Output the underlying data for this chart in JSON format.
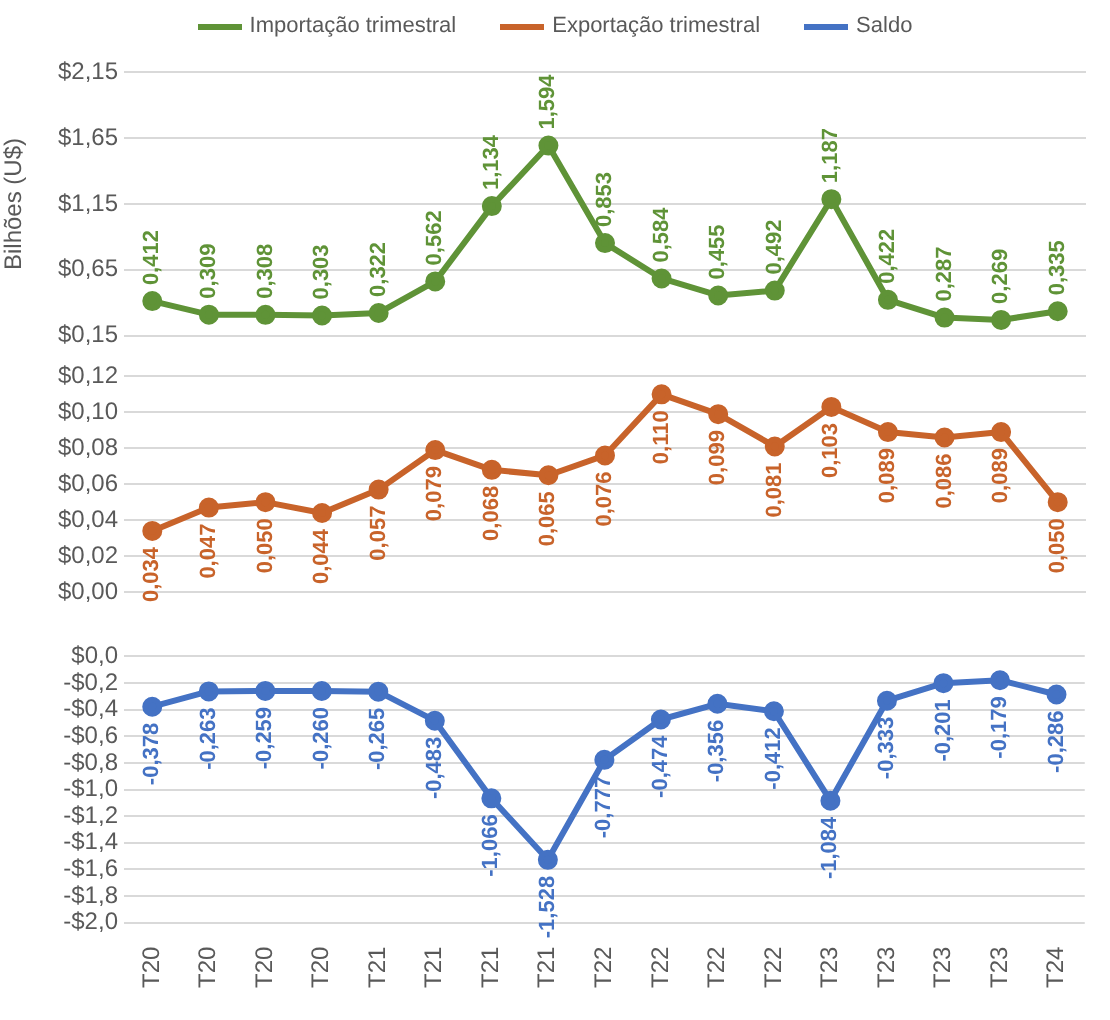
{
  "chart_data": [
    {
      "type": "line",
      "ylabel": "Bilhões (U$)",
      "legend": "top",
      "grid": "y",
      "marker": "circle",
      "line_style": "solid",
      "tick_labels": "y",
      "categories": [
        null,
        null,
        null,
        null,
        null,
        null,
        null,
        null,
        null,
        null,
        null,
        null,
        null,
        null,
        null,
        null,
        null
      ],
      "series": [
        {
          "name": "Importação trimestral",
          "color": "#5f9337",
          "values": [
            0.412,
            0.309,
            0.308,
            0.303,
            0.322,
            0.562,
            1.134,
            1.594,
            0.853,
            0.584,
            0.455,
            0.492,
            1.187,
            0.422,
            0.287,
            0.269,
            0.335
          ],
          "value_labels": [
            "0,412",
            "0,309",
            "0,308",
            "0,303",
            "0,322",
            "0,562",
            "1,134",
            "1,594",
            "0,853",
            "0,584",
            "0,455",
            "0,492",
            "1,187",
            "0,422",
            "0,287",
            "0,269",
            "0,335"
          ]
        }
      ],
      "ylim": [
        0.15,
        2.15
      ],
      "yticks": [
        {
          "value": 0.15,
          "label": "$0,15"
        },
        {
          "value": 0.65,
          "label": "$0,65"
        },
        {
          "value": 1.15,
          "label": "$1,15"
        },
        {
          "value": 1.65,
          "label": "$1,65"
        },
        {
          "value": 2.15,
          "label": "$2,15"
        }
      ]
    },
    {
      "type": "line",
      "legend": "top",
      "grid": "y",
      "marker": "circle",
      "line_style": "solid",
      "tick_labels": "y",
      "categories": [
        null,
        null,
        null,
        null,
        null,
        null,
        null,
        null,
        null,
        null,
        null,
        null,
        null,
        null,
        null,
        null,
        null
      ],
      "series": [
        {
          "name": "Exportação trimestral",
          "color": "#c8632a",
          "values": [
            0.034,
            0.047,
            0.05,
            0.044,
            0.057,
            0.079,
            0.068,
            0.065,
            0.076,
            0.11,
            0.099,
            0.081,
            0.103,
            0.089,
            0.086,
            0.089,
            0.05
          ],
          "value_labels": [
            "0,034",
            "0,047",
            "0,050",
            "0,044",
            "0,057",
            "0,079",
            "0,068",
            "0,065",
            "0,076",
            "0,110",
            "0,099",
            "0,081",
            "0,103",
            "0,089",
            "0,086",
            "0,089",
            "0,050"
          ]
        }
      ],
      "ylim": [
        0,
        0.12
      ],
      "yticks": [
        {
          "value": 0,
          "label": "$0,00"
        },
        {
          "value": 0.02,
          "label": "$0,02"
        },
        {
          "value": 0.04,
          "label": "$0,04"
        },
        {
          "value": 0.06,
          "label": "$0,06"
        },
        {
          "value": 0.08,
          "label": "$0,08"
        },
        {
          "value": 0.1,
          "label": "$0,10"
        },
        {
          "value": 0.12,
          "label": "$0,12"
        }
      ]
    },
    {
      "type": "line",
      "legend": "top",
      "grid": "y",
      "marker": "circle",
      "line_style": "solid",
      "categories": [
        "T20",
        "T20",
        "T20",
        "T20",
        "T21",
        "T21",
        "T21",
        "T21",
        "T22",
        "T22",
        "T22",
        "T22",
        "T23",
        "T23",
        "T23",
        "T23",
        "T24"
      ],
      "series": [
        {
          "name": "Saldo",
          "color": "#4472c4",
          "values": [
            -0.378,
            -0.263,
            -0.259,
            -0.26,
            -0.265,
            -0.483,
            -1.066,
            -1.528,
            -0.777,
            -0.474,
            -0.356,
            -0.412,
            -1.084,
            -0.333,
            -0.201,
            -0.179,
            -0.286
          ],
          "value_labels": [
            "-0,378",
            "-0,263",
            "-0,259",
            "-0,260",
            "-0,265",
            "-0,483",
            "-1,066",
            "-1,528",
            "-0,777",
            "-0,474",
            "-0,356",
            "-0,412",
            "-1,084",
            "-0,333",
            "-0,201",
            "-0,179",
            "-0,286"
          ]
        }
      ],
      "ylim": [
        -2,
        0
      ],
      "yticks": [
        {
          "value": -2,
          "label": "-$2,0"
        },
        {
          "value": -1.8,
          "label": "-$1,8"
        },
        {
          "value": -1.6,
          "label": "-$1,6"
        },
        {
          "value": -1.4,
          "label": "-$1,4"
        },
        {
          "value": -1.2,
          "label": "-$1,2"
        },
        {
          "value": -1,
          "label": "-$1,0"
        },
        {
          "value": -0.8,
          "label": "-$0,8"
        },
        {
          "value": -0.6,
          "label": "-$0,6"
        },
        {
          "value": -0.4,
          "label": "-$0,4"
        },
        {
          "value": -0.2,
          "label": "-$0,2"
        },
        {
          "value": 0,
          "label": "$0,0"
        }
      ]
    }
  ]
}
